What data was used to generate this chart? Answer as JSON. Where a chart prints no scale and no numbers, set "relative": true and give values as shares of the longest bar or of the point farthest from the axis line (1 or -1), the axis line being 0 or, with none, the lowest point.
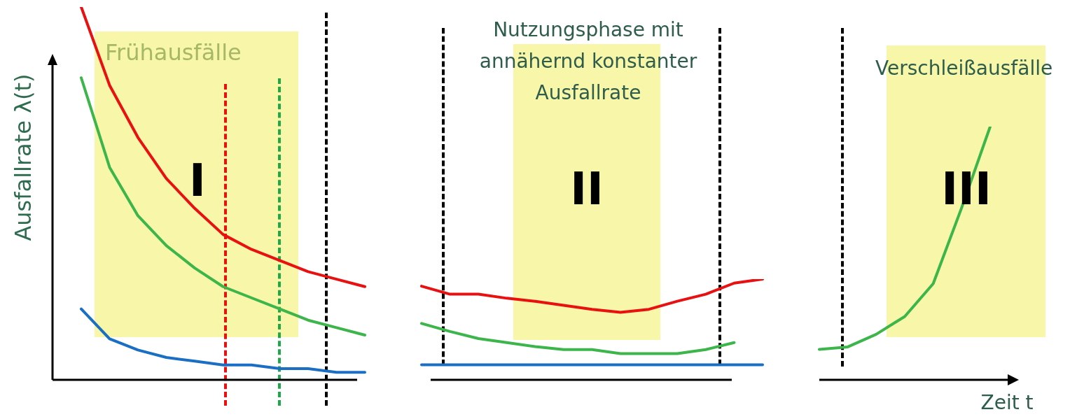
{
  "chart_data": [
    {
      "type": "line",
      "relative": true,
      "ylabel": "Ausfallrate λ(t)",
      "tick_labels": false,
      "categories": [
        null,
        null,
        null,
        null,
        null,
        null,
        null,
        null,
        null,
        null,
        null
      ],
      "series": [
        {
          "color": "#e81010",
          "values": [
            1.0,
            0.79,
            0.65,
            0.54,
            0.46,
            0.39,
            0.35,
            0.32,
            0.29,
            0.27,
            0.25
          ]
        },
        {
          "color": "#3cb54a",
          "values": [
            0.81,
            0.57,
            0.44,
            0.36,
            0.3,
            0.25,
            0.22,
            0.19,
            0.16,
            0.14,
            0.12
          ]
        },
        {
          "color": "#1a6fc4",
          "values": [
            0.19,
            0.11,
            0.08,
            0.06,
            0.05,
            0.04,
            0.04,
            0.03,
            0.03,
            0.02,
            0.02
          ]
        }
      ],
      "annotations": [
        "Frühausfälle",
        "I"
      ]
    },
    {
      "type": "line",
      "relative": true,
      "tick_labels": false,
      "categories": [
        null,
        null,
        null,
        null,
        null,
        null,
        null,
        null,
        null,
        null,
        null,
        null,
        null
      ],
      "series": [
        {
          "color": "#e81010",
          "values": [
            0.93,
            0.85,
            0.85,
            0.81,
            0.78,
            0.74,
            0.7,
            0.67,
            0.7,
            0.78,
            0.85,
            0.96,
            1.0
          ]
        },
        {
          "color": "#3cb54a",
          "values": [
            0.56,
            0.48,
            0.41,
            0.37,
            0.33,
            0.3,
            0.3,
            0.26,
            0.26,
            0.26,
            0.3,
            0.37,
            null
          ]
        },
        {
          "color": "#1a6fc4",
          "values": [
            0.15,
            0.15,
            0.15,
            0.15,
            0.15,
            0.15,
            0.15,
            0.15,
            0.15,
            0.15,
            0.15,
            0.15,
            0.15
          ]
        }
      ],
      "annotations": [
        "Nutzungsphase mit annähernd konstanter Ausfallrate",
        "II"
      ]
    },
    {
      "type": "line",
      "relative": true,
      "xlabel": "Zeit t",
      "tick_labels": false,
      "categories": [
        null,
        null,
        null,
        null,
        null,
        null,
        null
      ],
      "series": [
        {
          "color": "#3cb54a",
          "values": [
            0.12,
            0.13,
            0.18,
            0.25,
            0.38,
            0.68,
            1.0
          ]
        }
      ],
      "annotations": [
        "Verschleißausfälle",
        "III"
      ]
    }
  ]
}
